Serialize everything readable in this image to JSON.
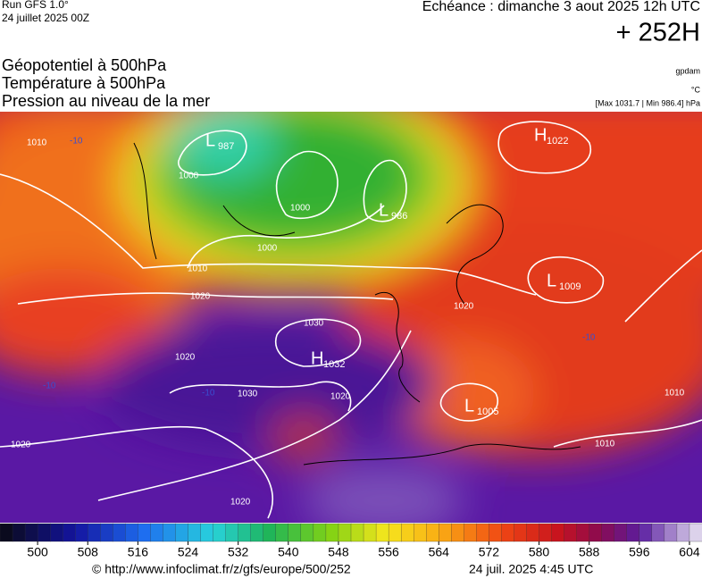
{
  "header": {
    "run": "Run GFS 1.0°",
    "run_date": "24 juillet 2025 00Z",
    "valid": "Echéance : dimanche 3 aout 2025 12h UTC",
    "lead": "+ 252H",
    "fields": [
      "Géopotentiel à 500hPa",
      "Température à 500hPa",
      "Pression au niveau de la mer"
    ],
    "unit_geo": "gpdam",
    "unit_temp": "°C",
    "extremes": "[Max 1031.7 | Min 986.4] hPa"
  },
  "map": {
    "centers": [
      {
        "type": "L",
        "value": 987
      },
      {
        "type": "L",
        "value": 986
      },
      {
        "type": "H",
        "value": 1022
      },
      {
        "type": "L",
        "value": 1009
      },
      {
        "type": "H",
        "value": 1032
      },
      {
        "type": "L",
        "value": 1005
      }
    ],
    "isobar_labels": [
      1010,
      1000,
      1000,
      1000,
      1010,
      1020,
      1030,
      1020,
      1030,
      1020,
      1020,
      1020,
      1010,
      1020,
      1010
    ],
    "temperature_labels": [
      -10,
      -10,
      -10,
      -10
    ]
  },
  "colorbar": {
    "range": [
      494,
      606
    ],
    "ticks": [
      500,
      508,
      516,
      524,
      532,
      540,
      548,
      556,
      564,
      572,
      580,
      588,
      596,
      604
    ]
  },
  "footer": {
    "url": "© http://www.infoclimat.fr/z/gfs/europe/500/252",
    "time": "24 juil. 2025  4:45 UTC"
  }
}
